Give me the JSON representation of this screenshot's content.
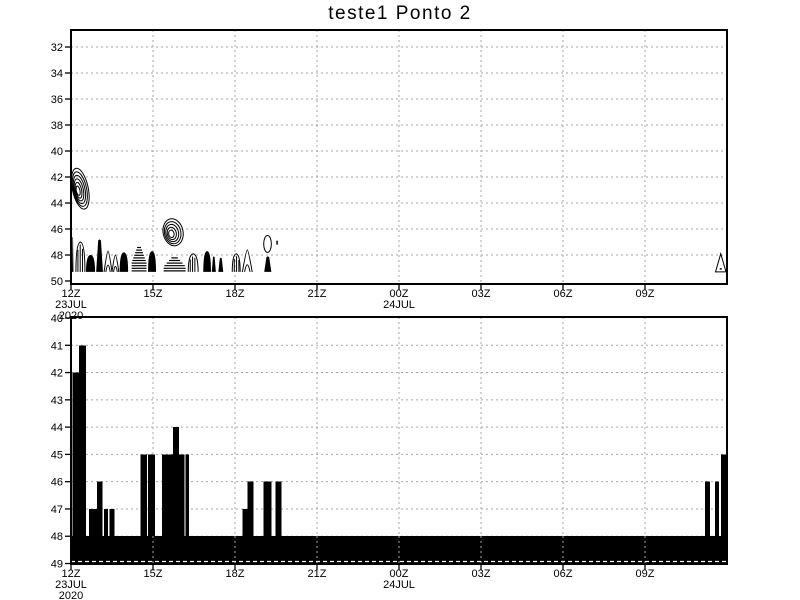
{
  "title": "teste1 Ponto 2",
  "colors": {
    "ink": "#000000",
    "grid": "#a6a6a6",
    "background": "#ffffff"
  },
  "chart_data": [
    {
      "type": "contour",
      "panel": "top",
      "y_ticks": [
        32,
        34,
        36,
        38,
        40,
        42,
        44,
        46,
        48,
        50
      ],
      "y_range": [
        30.7,
        50.2
      ],
      "x_hours_range": [
        0,
        24
      ],
      "x_ticks": [
        {
          "h": 0,
          "label": "12Z",
          "date_lines": [
            "23JUL",
            "2020"
          ]
        },
        {
          "h": 3,
          "label": "15Z"
        },
        {
          "h": 6,
          "label": "18Z"
        },
        {
          "h": 9,
          "label": "21Z"
        },
        {
          "h": 12,
          "label": "00Z",
          "date_lines": [
            "24JUL"
          ]
        },
        {
          "h": 15,
          "label": "03Z"
        },
        {
          "h": 18,
          "label": "06Z"
        },
        {
          "h": 21,
          "label": "09Z"
        }
      ],
      "features": [
        {
          "kind": "leaf",
          "h0": 0.05,
          "h1": 0.63,
          "v0": 41.3,
          "v1": 44.5,
          "rings": 6
        },
        {
          "kind": "leaf",
          "h0": 3.37,
          "h1": 4.1,
          "v0": 45.2,
          "v1": 47.3,
          "rings": 5
        },
        {
          "kind": "sliver",
          "h0": 7.05,
          "h1": 7.33,
          "v0": 46.5,
          "v1": 47.8
        },
        {
          "kind": "mark",
          "h0": 7.5,
          "h1": 7.58,
          "v0": 46.9,
          "v1": 47.2
        },
        {
          "kind": "tri",
          "h0": 23.58,
          "h1": 24.0,
          "v0": 47.9,
          "v1": 49.3
        }
      ],
      "strip_base_value": 49.3,
      "strip_features": [
        {
          "kind": "spike",
          "h0": -0.02,
          "h1": 0.09,
          "top": 46.6
        },
        {
          "kind": "hatch",
          "h0": 0.18,
          "h1": 0.51,
          "top": 47.0
        },
        {
          "kind": "blob",
          "h0": 0.55,
          "h1": 0.88,
          "top": 48.0
        },
        {
          "kind": "spike",
          "h0": 0.92,
          "h1": 1.17,
          "top": 46.8
        },
        {
          "kind": "tent",
          "h0": 1.21,
          "h1": 1.5,
          "top": 47.7
        },
        {
          "kind": "tent",
          "h0": 1.5,
          "h1": 1.75,
          "top": 48.0
        },
        {
          "kind": "blob",
          "h0": 1.78,
          "h1": 2.09,
          "top": 47.8
        },
        {
          "kind": "stripe",
          "h0": 2.2,
          "h1": 2.78,
          "top": 47.4
        },
        {
          "kind": "blob",
          "h0": 2.82,
          "h1": 3.11,
          "top": 47.7
        },
        {
          "kind": "stripe",
          "h0": 3.37,
          "h1": 4.21,
          "top": 48.2
        },
        {
          "kind": "hatch",
          "h0": 4.29,
          "h1": 4.65,
          "top": 47.9
        },
        {
          "kind": "blob",
          "h0": 4.84,
          "h1": 5.12,
          "top": 47.7
        },
        {
          "kind": "spike",
          "h0": 5.15,
          "h1": 5.3,
          "top": 48.1
        },
        {
          "kind": "spike",
          "h0": 5.39,
          "h1": 5.57,
          "top": 48.2
        },
        {
          "kind": "hatch",
          "h0": 5.9,
          "h1": 6.19,
          "top": 47.9
        },
        {
          "kind": "tent",
          "h0": 6.27,
          "h1": 6.63,
          "top": 47.6
        },
        {
          "kind": "spike",
          "h0": 7.07,
          "h1": 7.33,
          "top": 48.1
        }
      ]
    },
    {
      "type": "bar",
      "panel": "bottom",
      "y_ticks": [
        40,
        41,
        42,
        43,
        44,
        45,
        46,
        47,
        48,
        49
      ],
      "y_range": [
        40,
        49
      ],
      "x_hours_range": [
        0,
        24
      ],
      "x_ticks": [
        {
          "h": 0,
          "label": "12Z",
          "date_lines": [
            "23JUL",
            "2020"
          ]
        },
        {
          "h": 3,
          "label": "15Z"
        },
        {
          "h": 6,
          "label": "18Z"
        },
        {
          "h": 9,
          "label": "21Z"
        },
        {
          "h": 12,
          "label": "00Z",
          "date_lines": [
            "24JUL"
          ]
        },
        {
          "h": 15,
          "label": "03Z"
        },
        {
          "h": 18,
          "label": "06Z"
        },
        {
          "h": 21,
          "label": "09Z"
        }
      ],
      "base_band": {
        "v_top": 48,
        "v_bottom": 49
      },
      "bars": [
        {
          "h0": 0.05,
          "h1": 0.45,
          "top": 42
        },
        {
          "h0": 0.3,
          "h1": 0.55,
          "top": 41
        },
        {
          "h0": 0.65,
          "h1": 1.1,
          "top": 47
        },
        {
          "h0": 0.95,
          "h1": 1.15,
          "top": 46
        },
        {
          "h0": 1.2,
          "h1": 1.35,
          "top": 47
        },
        {
          "h0": 1.4,
          "h1": 1.6,
          "top": 47
        },
        {
          "h0": 2.55,
          "h1": 2.78,
          "top": 45
        },
        {
          "h0": 2.82,
          "h1": 3.08,
          "top": 45
        },
        {
          "h0": 3.33,
          "h1": 4.15,
          "top": 45
        },
        {
          "h0": 3.74,
          "h1": 3.96,
          "top": 44
        },
        {
          "h0": 4.18,
          "h1": 4.32,
          "top": 45
        },
        {
          "h0": 6.27,
          "h1": 6.63,
          "top": 47
        },
        {
          "h0": 6.45,
          "h1": 6.67,
          "top": 46
        },
        {
          "h0": 7.05,
          "h1": 7.33,
          "top": 46
        },
        {
          "h0": 7.48,
          "h1": 7.7,
          "top": 46
        },
        {
          "h0": 23.19,
          "h1": 23.38,
          "top": 46
        },
        {
          "h0": 23.56,
          "h1": 23.71,
          "top": 46
        },
        {
          "h0": 23.78,
          "h1": 23.97,
          "top": 45
        }
      ]
    }
  ]
}
